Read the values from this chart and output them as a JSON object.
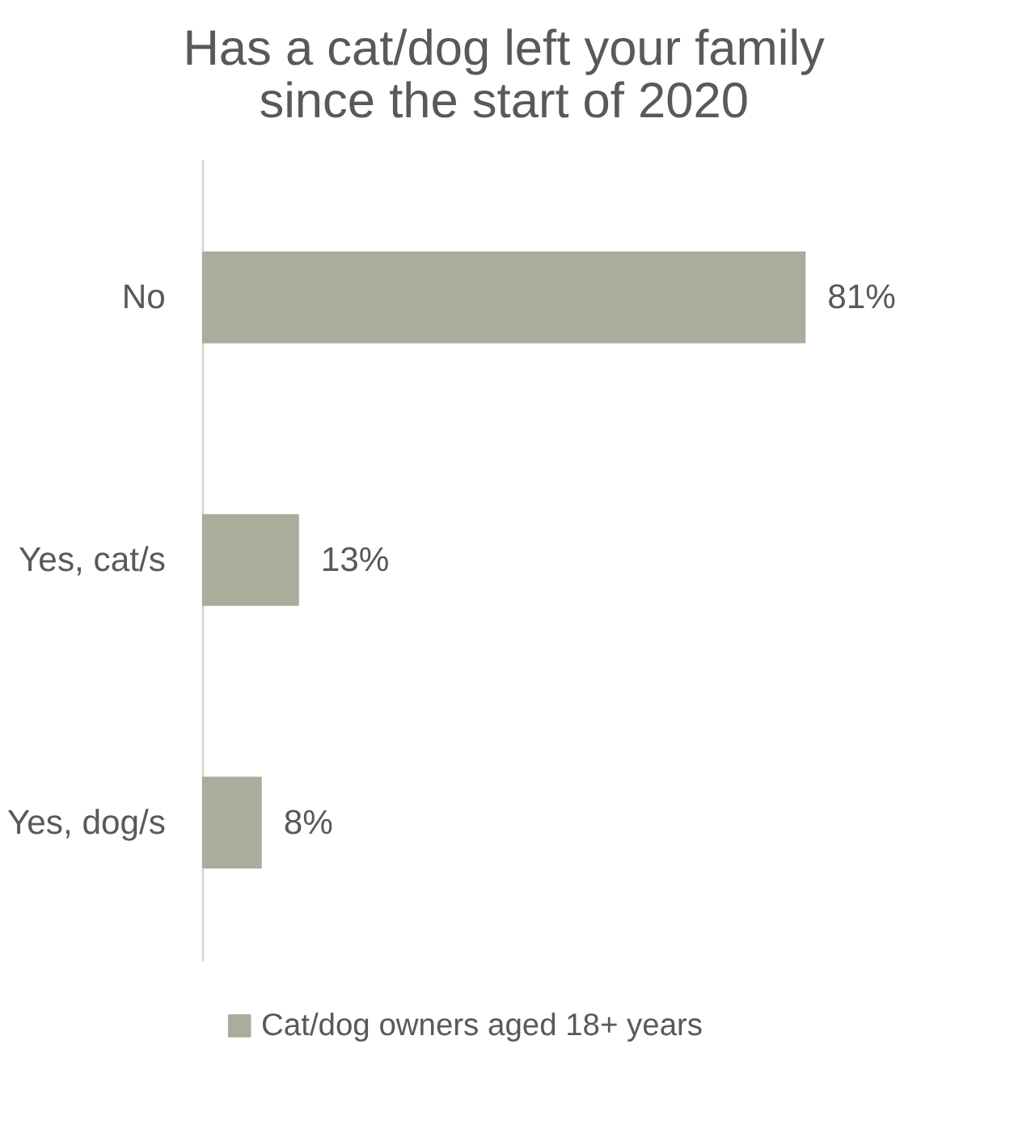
{
  "chart_data": {
    "type": "bar",
    "orientation": "horizontal",
    "title": "Has a cat/dog left your family\nsince the start of 2020",
    "categories": [
      "No",
      "Yes, cat/s",
      "Yes, dog/s"
    ],
    "series": [
      {
        "name": "Cat/dog owners aged 18+ years",
        "color": "#abac9c",
        "values": [
          81,
          13,
          8
        ],
        "value_labels": [
          "81%",
          "13%",
          "8%"
        ]
      }
    ],
    "grid": false,
    "legend": "bottom"
  }
}
